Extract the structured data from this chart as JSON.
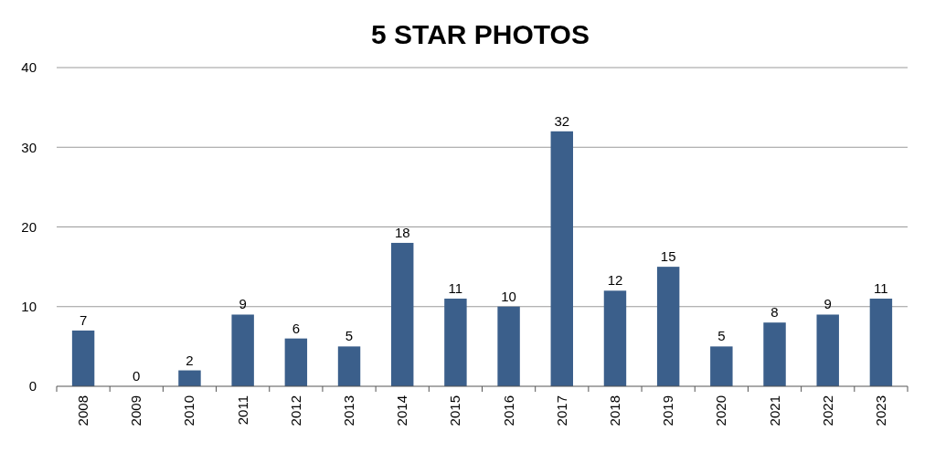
{
  "chart_data": {
    "type": "bar",
    "title": "5 STAR PHOTOS",
    "categories": [
      "2008",
      "2009",
      "2010",
      "2011",
      "2012",
      "2013",
      "2014",
      "2015",
      "2016",
      "2017",
      "2018",
      "2019",
      "2020",
      "2021",
      "2022",
      "2023"
    ],
    "values": [
      7,
      0,
      2,
      9,
      6,
      5,
      18,
      11,
      10,
      32,
      12,
      15,
      5,
      8,
      9,
      11
    ],
    "color": "#3b5f8b",
    "ylim": [
      0,
      40
    ],
    "yticks": [
      0,
      10,
      20,
      30,
      40
    ],
    "grid": "y",
    "data_labels": true
  }
}
